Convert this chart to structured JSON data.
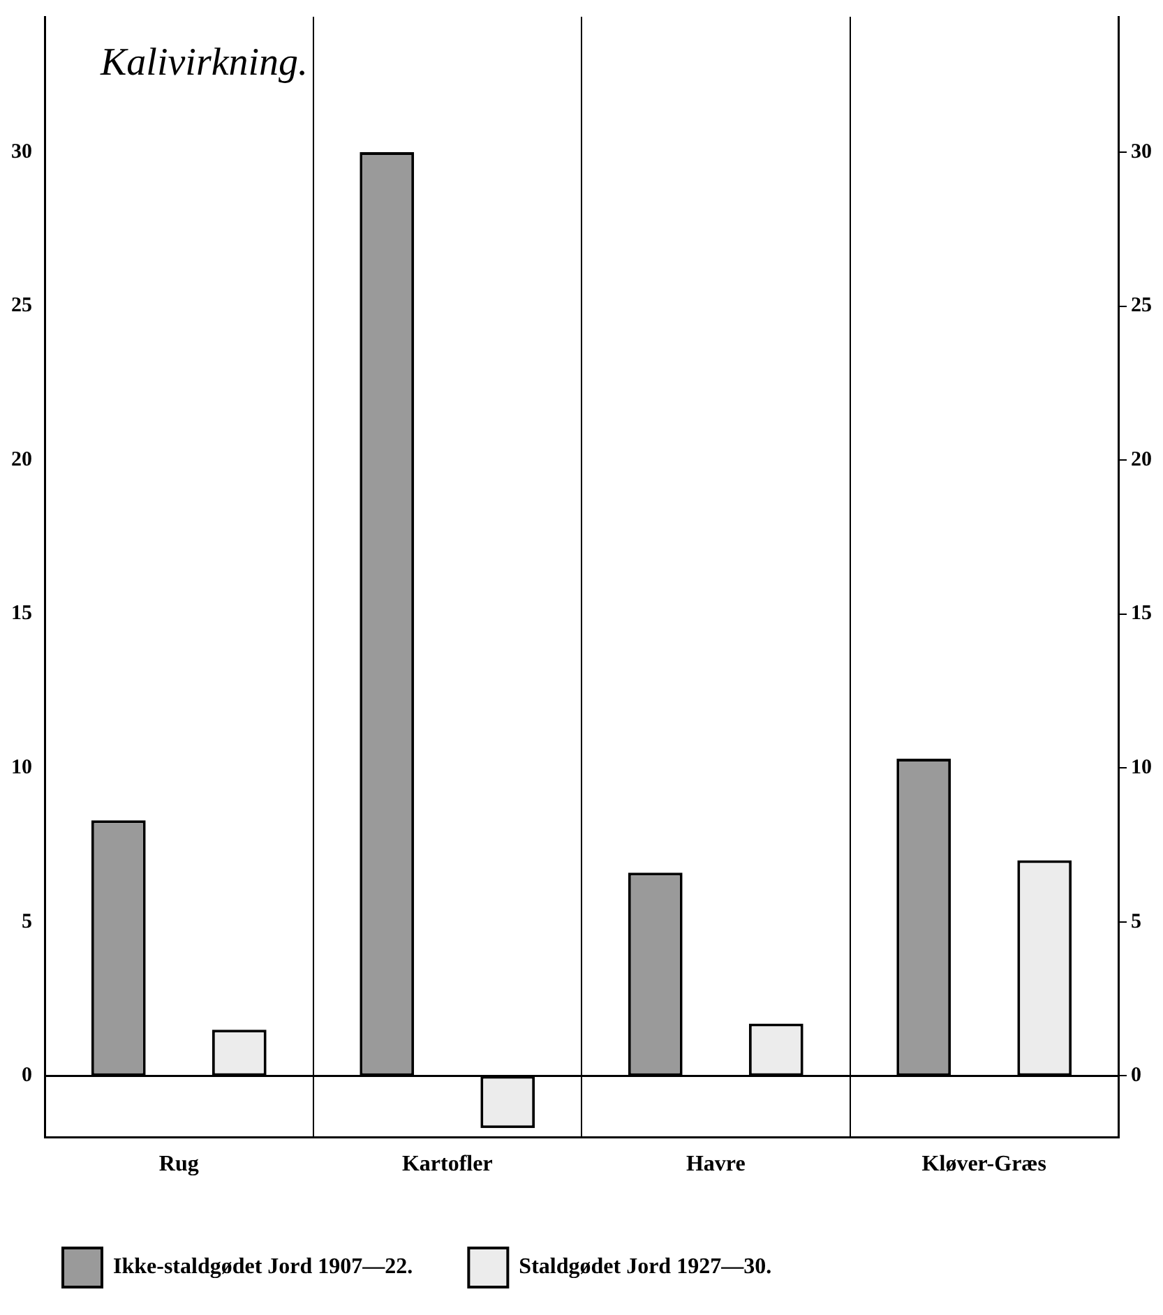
{
  "chart_data": {
    "type": "bar",
    "title": "Kalivirkning.",
    "categories": [
      "Rug",
      "Kartofler",
      "Havre",
      "Kløver-Græs"
    ],
    "series": [
      {
        "name": "Ikke-staldgødet Jord 1907—22.",
        "color": "#9a9a9a",
        "values": [
          8.3,
          30.0,
          6.6,
          10.3
        ]
      },
      {
        "name": "Staldgødet Jord 1927—30.",
        "color": "#ececec",
        "values": [
          1.5,
          -1.7,
          1.7,
          7.0
        ]
      }
    ],
    "ylim": [
      -2,
      34.4
    ],
    "yticks": [
      0,
      5,
      10,
      15,
      20,
      25,
      30
    ],
    "y2lim": [
      -2,
      34.4
    ],
    "y2ticks": [
      0,
      5,
      10,
      15,
      20,
      25,
      30
    ],
    "grid": "x",
    "legend": "bottom"
  }
}
